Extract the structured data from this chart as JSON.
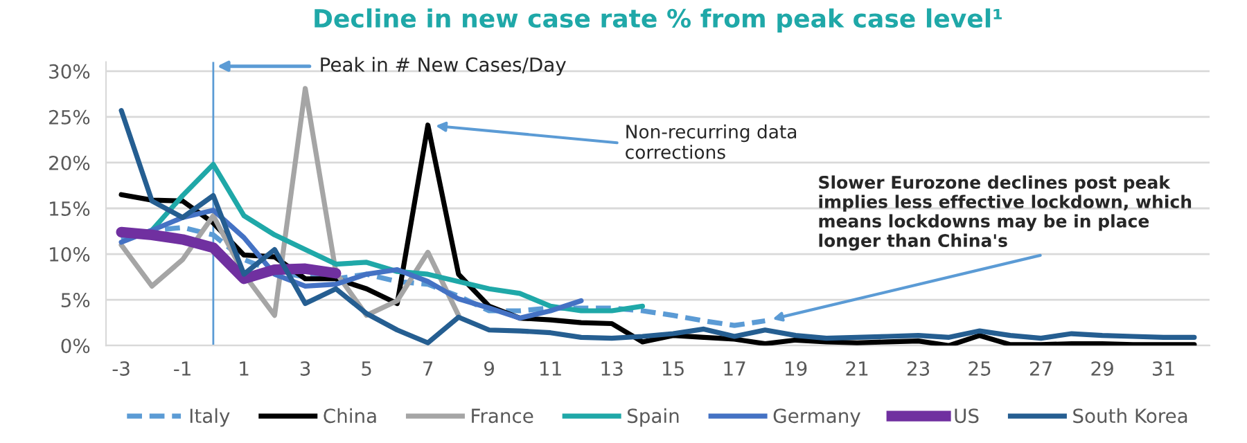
{
  "chart_data": {
    "type": "line",
    "title": "Decline in new case rate % from peak case level¹",
    "x": [
      -3,
      -2,
      -1,
      0,
      1,
      2,
      3,
      4,
      5,
      6,
      7,
      8,
      9,
      10,
      11,
      12,
      13,
      14,
      15,
      16,
      17,
      18,
      19,
      20,
      21,
      22,
      23,
      24,
      25,
      26,
      27,
      28,
      29,
      30,
      31,
      32
    ],
    "series": [
      {
        "name": "Italy",
        "color": "#5b9bd5",
        "line_style": "dashed",
        "values": [
          11.6,
          12.6,
          12.9,
          12.1,
          9.4,
          8.1,
          7.5,
          7.3,
          7.8,
          7.0,
          6.7,
          5.4,
          3.8,
          3.8,
          4.1,
          4.1,
          4.1,
          3.8,
          3.3,
          2.7,
          2.2,
          2.7,
          null,
          null,
          null,
          null,
          null,
          null,
          null,
          null,
          null,
          null,
          null,
          null,
          null,
          null
        ]
      },
      {
        "name": "China",
        "color": "#000000",
        "values": [
          16.5,
          15.9,
          15.8,
          13.4,
          9.9,
          9.7,
          7.3,
          7.3,
          6.2,
          4.6,
          24.1,
          7.8,
          4.3,
          3.0,
          2.8,
          2.5,
          2.4,
          0.4,
          1.1,
          0.9,
          0.7,
          0.2,
          0.6,
          0.4,
          0.3,
          0.4,
          0.5,
          0.0,
          1.1,
          0.1,
          0.1,
          0.2,
          0.2,
          0.1,
          0.1,
          0.1
        ]
      },
      {
        "name": "France",
        "color": "#a5a5a5",
        "values": [
          11.0,
          6.5,
          9.4,
          14.2,
          7.8,
          3.3,
          28.1,
          8.0,
          3.3,
          4.9,
          10.2,
          3.3,
          null,
          null,
          null,
          null,
          null,
          null,
          null,
          null,
          null,
          null,
          null,
          null,
          null,
          null,
          null,
          null,
          null,
          null,
          null,
          null,
          null,
          null,
          null,
          null
        ]
      },
      {
        "name": "Spain",
        "color": "#1fa8a8",
        "values": [
          null,
          12.6,
          16.4,
          19.8,
          14.2,
          12.1,
          10.5,
          8.9,
          9.1,
          8.1,
          7.8,
          7.0,
          6.2,
          5.7,
          4.3,
          3.8,
          3.8,
          4.3,
          null,
          null,
          null,
          null,
          null,
          null,
          null,
          null,
          null,
          null,
          null,
          null,
          null,
          null,
          null,
          null,
          null,
          null
        ]
      },
      {
        "name": "Germany",
        "color": "#4472c4",
        "values": [
          11.3,
          12.6,
          14.0,
          14.8,
          11.8,
          7.8,
          6.5,
          6.7,
          7.8,
          8.3,
          7.0,
          5.1,
          4.1,
          3.0,
          3.8,
          4.9,
          null,
          null,
          null,
          null,
          null,
          null,
          null,
          null,
          null,
          null,
          null,
          null,
          null,
          null,
          null,
          null,
          null,
          null,
          null,
          null
        ]
      },
      {
        "name": "US",
        "color": "#7030a0",
        "values": [
          12.4,
          12.1,
          11.6,
          10.7,
          7.3,
          8.3,
          8.4,
          7.9,
          null,
          null,
          null,
          null,
          null,
          null,
          null,
          null,
          null,
          null,
          null,
          null,
          null,
          null,
          null,
          null,
          null,
          null,
          null,
          null,
          null,
          null,
          null,
          null,
          null,
          null,
          null,
          null
        ]
      },
      {
        "name": "South Korea",
        "color": "#255e91",
        "values": [
          25.7,
          15.8,
          14.0,
          16.4,
          7.8,
          10.5,
          4.6,
          6.2,
          3.5,
          1.7,
          0.3,
          3.1,
          1.7,
          1.6,
          1.4,
          0.9,
          0.8,
          1.0,
          1.3,
          1.8,
          1.0,
          1.7,
          1.1,
          0.8,
          0.9,
          1.0,
          1.1,
          0.9,
          1.6,
          1.1,
          0.8,
          1.3,
          1.1,
          1.0,
          0.9,
          0.9
        ]
      }
    ],
    "xlim": [
      -3.5,
      32.5
    ],
    "xticks": [
      -3,
      -1,
      1,
      3,
      5,
      7,
      9,
      11,
      13,
      15,
      17,
      19,
      21,
      23,
      25,
      27,
      29,
      31
    ],
    "ylim": [
      0,
      31
    ],
    "yticks": [
      {
        "value": 0,
        "label": "0%"
      },
      {
        "value": 5,
        "label": "5%"
      },
      {
        "value": 10,
        "label": "10%"
      },
      {
        "value": 15,
        "label": "15%"
      },
      {
        "value": 20,
        "label": "20%"
      },
      {
        "value": 25,
        "label": "25%"
      },
      {
        "value": 30,
        "label": "30%"
      }
    ],
    "grid": "y",
    "legend": "bottom",
    "ref_lines": [
      {
        "axis": "x",
        "value": 0,
        "label": "Peak in # New Cases/Day",
        "color": "#5b9bd5"
      }
    ],
    "annotations": [
      {
        "text": "Non-recurring data\ncorrections",
        "x": 7,
        "y": 24.1
      },
      {
        "text": "Slower Eurozone declines post peak\nimplies less effective lockdown, which\nmeans lockdowns may be in place\nlonger than China's",
        "x": 18,
        "y": 2.7
      }
    ]
  }
}
